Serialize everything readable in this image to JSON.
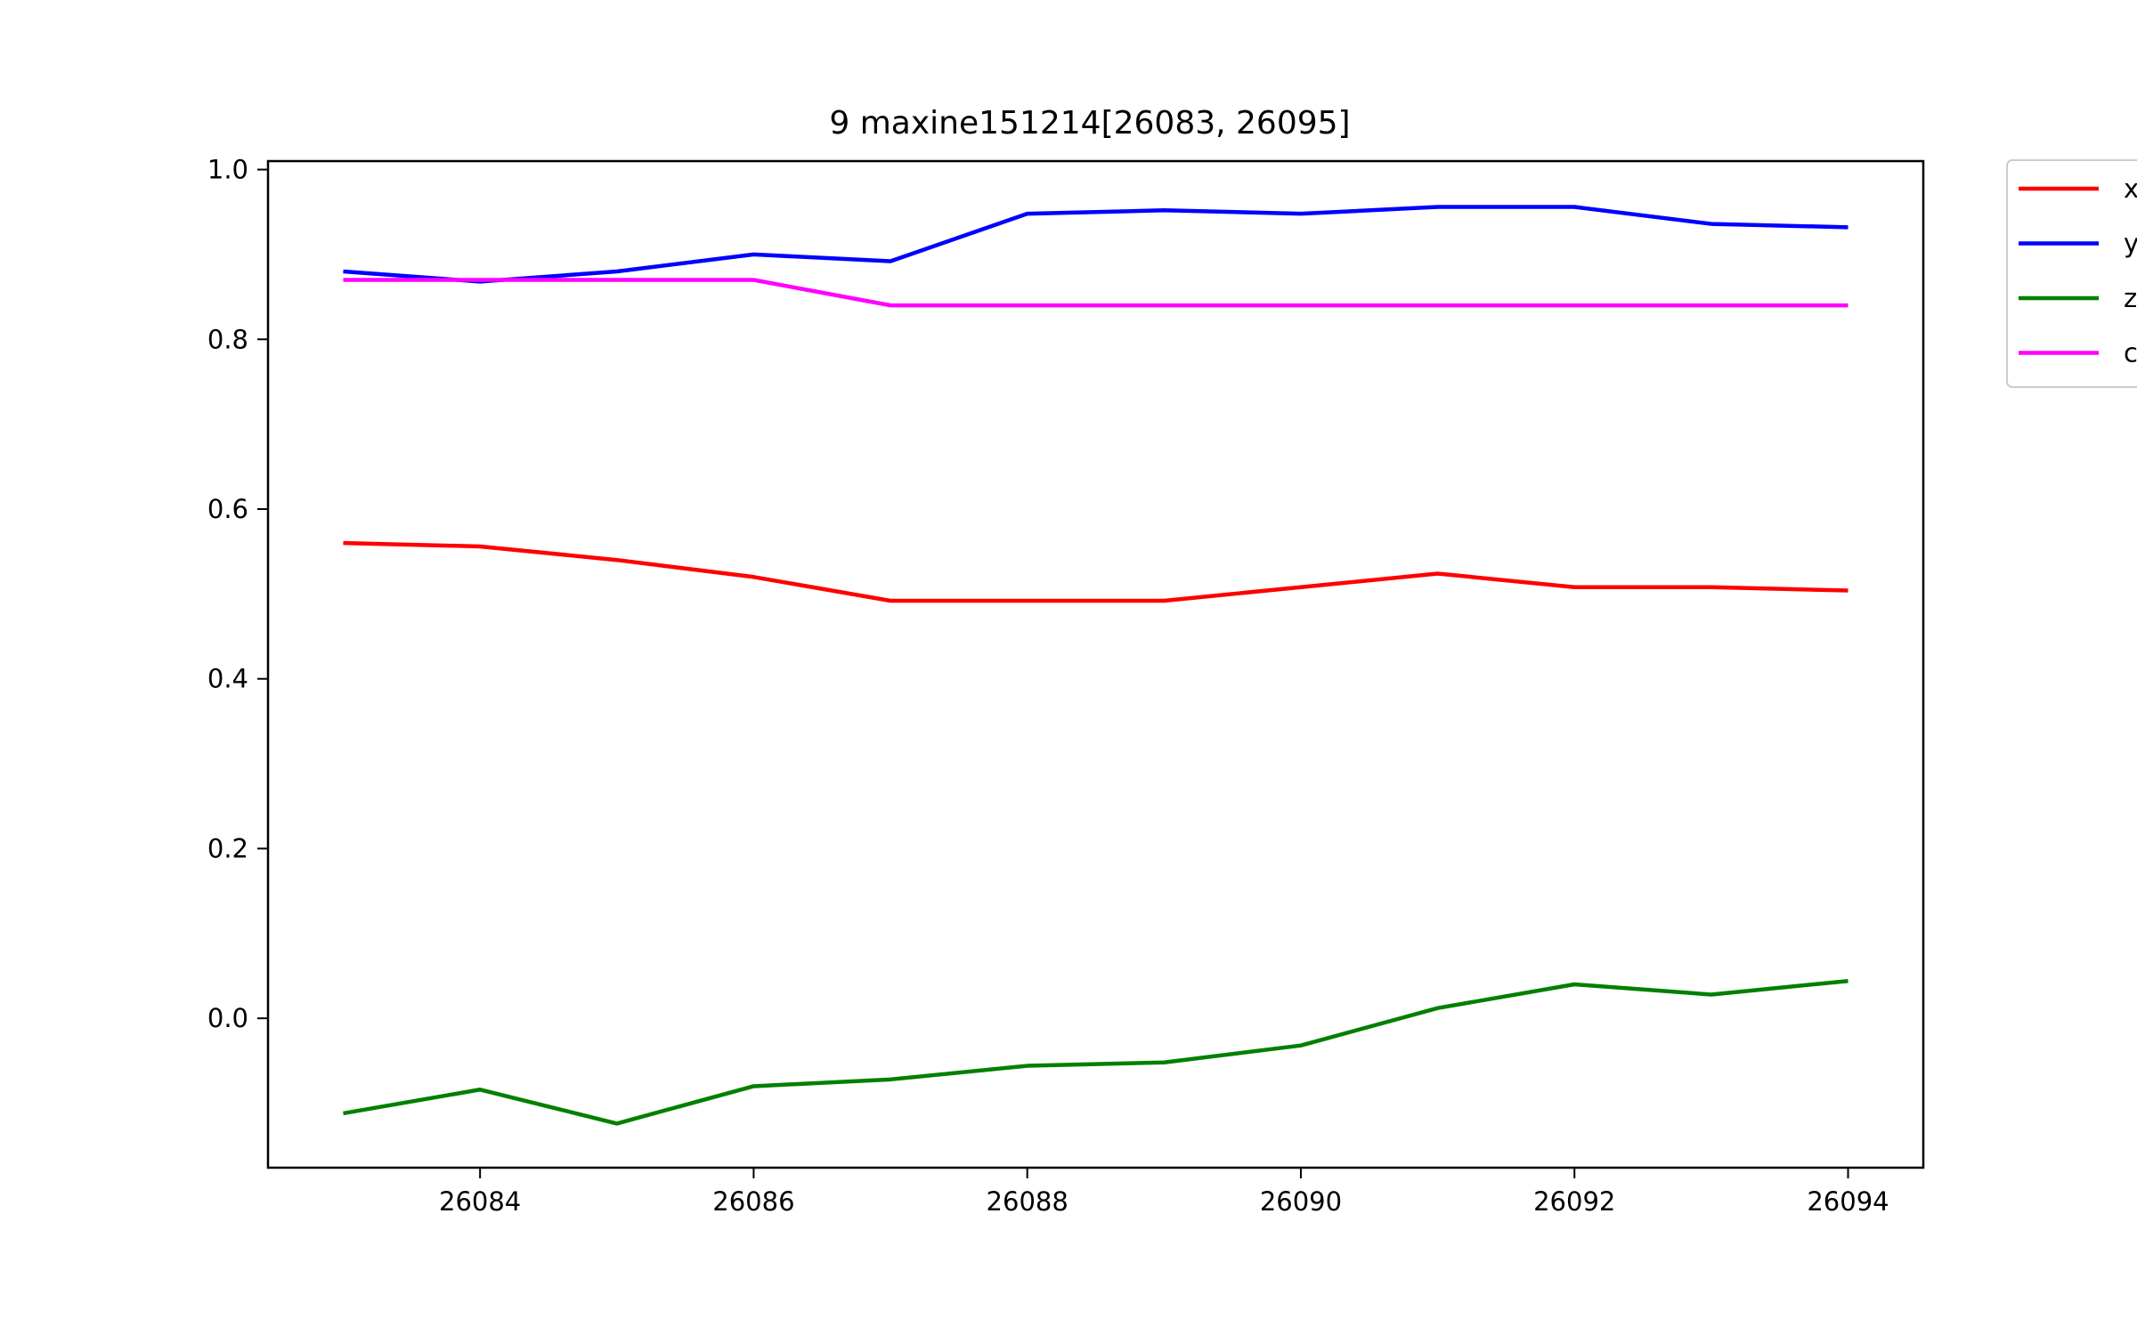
{
  "chart_data": {
    "type": "line",
    "title": "9 maxine151214[26083, 26095]",
    "xlabel": "",
    "ylabel": "",
    "xlim": [
      26082.45,
      26094.55
    ],
    "ylim": [
      -0.176,
      1.01
    ],
    "xticks": [
      26084,
      26086,
      26088,
      26090,
      26092,
      26094
    ],
    "yticks": [
      0.0,
      0.2,
      0.4,
      0.6,
      0.8,
      1.0
    ],
    "grid": false,
    "legend_position": "outside-top-right",
    "x": [
      26083,
      26084,
      26085,
      26086,
      26087,
      26088,
      26089,
      26090,
      26091,
      26092,
      26093,
      26094
    ],
    "series": [
      {
        "name": "x",
        "color": "#ff0000",
        "values": [
          0.56,
          0.556,
          0.54,
          0.52,
          0.492,
          0.492,
          0.492,
          0.508,
          0.524,
          0.508,
          0.508,
          0.504
        ]
      },
      {
        "name": "y",
        "color": "#0000ff",
        "values": [
          0.88,
          0.868,
          0.88,
          0.9,
          0.892,
          0.948,
          0.952,
          0.948,
          0.956,
          0.956,
          0.936,
          0.932
        ]
      },
      {
        "name": "z",
        "color": "#008000",
        "values": [
          -0.112,
          -0.084,
          -0.124,
          -0.08,
          -0.072,
          -0.056,
          -0.052,
          -0.032,
          0.012,
          0.04,
          0.028,
          0.044
        ]
      },
      {
        "name": "c",
        "color": "#ff00ff",
        "values": [
          0.87,
          0.87,
          0.87,
          0.87,
          0.84,
          0.84,
          0.84,
          0.84,
          0.84,
          0.84,
          0.84,
          0.84
        ]
      }
    ]
  }
}
